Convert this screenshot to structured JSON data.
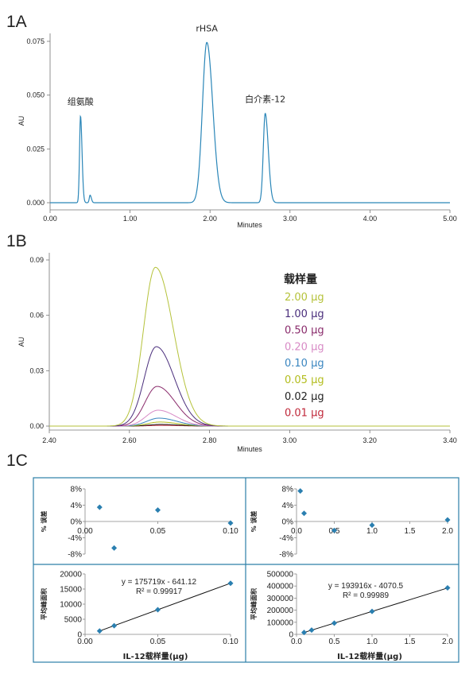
{
  "panel_labels": {
    "a": "1A",
    "b": "1B",
    "c": "1C"
  },
  "chart_data": [
    {
      "id": "1A",
      "type": "line",
      "xlabel": "Minutes",
      "ylabel": "AU",
      "xlim": [
        0,
        5
      ],
      "ylim": [
        -0.003,
        0.081
      ],
      "xticks": [
        "0.00",
        "1.00",
        "2.00",
        "3.00",
        "4.00",
        "5.00"
      ],
      "yticks": [
        "0.000",
        "0.025",
        "0.050",
        "0.075"
      ],
      "color": "#2a86b8",
      "peaks": [
        {
          "label": "组氨酸",
          "rt": 0.38,
          "height": 0.0405
        },
        {
          "label": "",
          "rt": 0.5,
          "height": 0.0035
        },
        {
          "label": "rHSA",
          "rt": 1.96,
          "height": 0.0745
        },
        {
          "label": "白介素-12",
          "rt": 2.69,
          "height": 0.0415
        }
      ]
    },
    {
      "id": "1B",
      "type": "line",
      "xlabel": "Minutes",
      "ylabel": "AU",
      "xlim": [
        2.4,
        3.4
      ],
      "ylim": [
        -0.003,
        0.091
      ],
      "xticks": [
        "2.40",
        "2.60",
        "2.80",
        "3.00",
        "3.20",
        "3.40"
      ],
      "yticks": [
        "0.00",
        "0.03",
        "0.06",
        "0.09"
      ],
      "legend_title": "载样量",
      "series": [
        {
          "name": "2.00 μg",
          "color": "#b5c23a",
          "peak": 0.086
        },
        {
          "name": "1.00 μg",
          "color": "#4a2e7c",
          "peak": 0.043
        },
        {
          "name": "0.50 μg",
          "color": "#8a2c6c",
          "peak": 0.0215
        },
        {
          "name": "0.20 μg",
          "color": "#d88bc6",
          "peak": 0.0086
        },
        {
          "name": "0.10 μg",
          "color": "#3a86c0",
          "peak": 0.0043
        },
        {
          "name": "0.05 μg",
          "color": "#b3bd1e",
          "peak": 0.0022
        },
        {
          "name": "0.02 μg",
          "color": "#222222",
          "peak": 0.0009
        },
        {
          "name": "0.01 μg",
          "color": "#c0283a",
          "peak": 0.0004
        }
      ]
    },
    {
      "id": "1C-residual-left",
      "type": "scatter",
      "ylabel": "% 误差",
      "xlim": [
        0,
        0.1
      ],
      "ylim": [
        -8,
        8
      ],
      "xticks": [
        "0.00",
        "0.05",
        "0.10"
      ],
      "yticks": [
        "8%",
        "4%",
        "0%",
        "-4%",
        "-8%"
      ],
      "points": [
        [
          0.01,
          3.5
        ],
        [
          0.02,
          -6.5
        ],
        [
          0.05,
          2.8
        ],
        [
          0.1,
          -0.4
        ]
      ]
    },
    {
      "id": "1C-residual-right",
      "type": "scatter",
      "ylabel": "% 误差",
      "xlim": [
        0,
        2
      ],
      "ylim": [
        -8,
        8
      ],
      "xticks": [
        "0.0",
        "0.5",
        "1.0",
        "1.5",
        "2.0"
      ],
      "yticks": [
        "8%",
        "4%",
        "0%",
        "-4%",
        "-8%"
      ],
      "points": [
        [
          0.05,
          7.5
        ],
        [
          0.1,
          2.0
        ],
        [
          0.5,
          -2.2
        ],
        [
          1.0,
          -0.9
        ],
        [
          2.0,
          0.4
        ]
      ]
    },
    {
      "id": "1C-cal-left",
      "type": "scatter",
      "ylabel": "平均峰面积",
      "xlabel": "IL-12载样量(μg)",
      "xlim": [
        0,
        0.1
      ],
      "ylim": [
        0,
        20000
      ],
      "xticks": [
        "0.00",
        "0.05",
        "0.10"
      ],
      "yticks": [
        "0",
        "5000",
        "10000",
        "15000",
        "20000"
      ],
      "equation": "y = 175719x - 641.12",
      "r2": "R² = 0.99917",
      "fit": {
        "slope": 175719,
        "intercept": -641.12
      },
      "points": [
        [
          0.01,
          1120
        ],
        [
          0.02,
          2870
        ],
        [
          0.05,
          8150
        ],
        [
          0.1,
          16900
        ]
      ]
    },
    {
      "id": "1C-cal-right",
      "type": "scatter",
      "ylabel": "平均峰面积",
      "xlabel": "IL-12载样量(μg)",
      "xlim": [
        0,
        2
      ],
      "ylim": [
        0,
        500000
      ],
      "xticks": [
        "0.0",
        "0.5",
        "1.0",
        "1.5",
        "2.0"
      ],
      "yticks": [
        "0",
        "100000",
        "200000",
        "300000",
        "400000",
        "500000"
      ],
      "equation": "y = 193916x - 4070.5",
      "r2": "R² = 0.99989",
      "fit": {
        "slope": 193916,
        "intercept": -4070.5
      },
      "points": [
        [
          0.1,
          15500
        ],
        [
          0.2,
          35300
        ],
        [
          0.5,
          93000
        ],
        [
          1.0,
          190000
        ],
        [
          2.0,
          385000
        ]
      ]
    }
  ]
}
